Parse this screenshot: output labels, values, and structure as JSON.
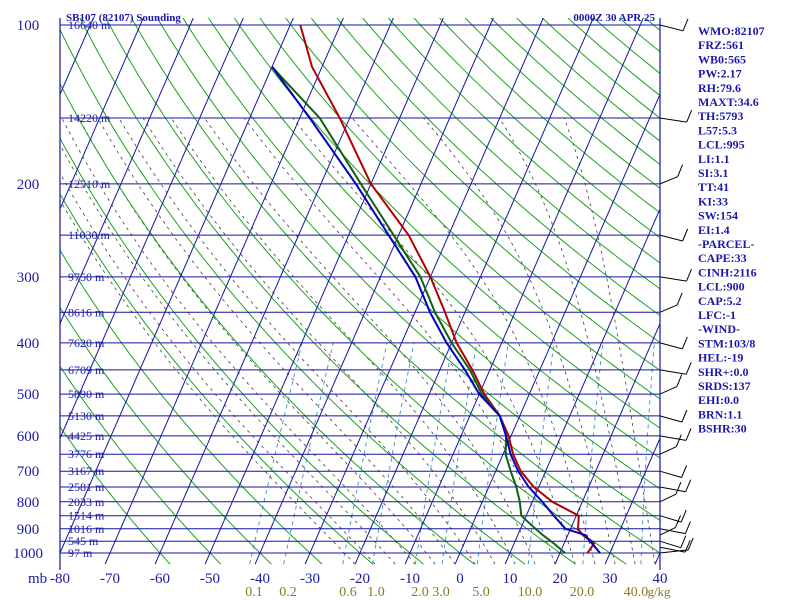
{
  "colors": {
    "background": "#ffffff",
    "isobar": "#1515a0",
    "isotherm": "#1515a0",
    "dry_adiabat": "#20a020",
    "moist_adiabat": "#404040",
    "mixing_ratio": "#3a8fd0",
    "temperature": "#b00000",
    "dewpoint": "#106010",
    "parcel": "#0000c0",
    "label_text": "#1a1aa8",
    "mixing_label_text": "#8a7a20"
  },
  "chart_data": {
    "type": "line",
    "title": "SB107 (82107) Sounding",
    "valid_time": "0000Z 30 APR 25",
    "x_axis": {
      "unit_label": "mb",
      "range_celsius": [
        -80,
        40
      ],
      "tick_labels": [
        "-80",
        "-70",
        "-60",
        "-50",
        "-40",
        "-30",
        "-20",
        "-10",
        "0",
        "10",
        "20",
        "30",
        "40"
      ],
      "tick_values": [
        -80,
        -70,
        -60,
        -50,
        -40,
        -30,
        -20,
        -10,
        0,
        10,
        20,
        30,
        40
      ]
    },
    "y_axis": {
      "scale": "log",
      "range_mb": [
        1000,
        100
      ],
      "tick_labels": [
        "100",
        "200",
        "300",
        "400",
        "500",
        "600",
        "700",
        "800",
        "900",
        "1000"
      ],
      "tick_values": [
        100,
        200,
        300,
        400,
        500,
        600,
        700,
        800,
        900,
        1000
      ]
    },
    "height_labels": [
      {
        "p": 100,
        "text": "16640 m"
      },
      {
        "p": 150,
        "text": "14220 m"
      },
      {
        "p": 200,
        "text": "12510 m"
      },
      {
        "p": 250,
        "text": "11030 m"
      },
      {
        "p": 300,
        "text": "9750 m"
      },
      {
        "p": 350,
        "text": "8616 m"
      },
      {
        "p": 400,
        "text": "7620 m"
      },
      {
        "p": 450,
        "text": "6709 m"
      },
      {
        "p": 500,
        "text": "5890 m"
      },
      {
        "p": 550,
        "text": "5130 m"
      },
      {
        "p": 600,
        "text": "4425 m"
      },
      {
        "p": 650,
        "text": "3776 m"
      },
      {
        "p": 700,
        "text": "3167 m"
      },
      {
        "p": 750,
        "text": "2581 m"
      },
      {
        "p": 800,
        "text": "2033 m"
      },
      {
        "p": 850,
        "text": "1514 m"
      },
      {
        "p": 900,
        "text": "1016 m"
      },
      {
        "p": 950,
        "text": "545 m"
      },
      {
        "p": 1000,
        "text": "97 m"
      }
    ],
    "mixing_ratio_labels": [
      "0.1",
      "0.2",
      "0.6",
      "1.0",
      "2.0",
      "3.0",
      "5.0",
      "10.0",
      "20.0",
      "40.0"
    ],
    "mixing_ratio_unit": "g/kg",
    "series": [
      {
        "key": "temperature",
        "points": [
          [
            1000,
            25.5
          ],
          [
            960,
            26
          ],
          [
            925,
            23
          ],
          [
            900,
            21.5
          ],
          [
            850,
            20.5
          ],
          [
            800,
            14
          ],
          [
            750,
            9
          ],
          [
            700,
            5
          ],
          [
            650,
            2
          ],
          [
            600,
            -0.5
          ],
          [
            550,
            -4
          ],
          [
            500,
            -9
          ],
          [
            450,
            -13.5
          ],
          [
            400,
            -19
          ],
          [
            350,
            -24
          ],
          [
            300,
            -30
          ],
          [
            250,
            -38
          ],
          [
            200,
            -50
          ],
          [
            150,
            -62
          ],
          [
            120,
            -72
          ],
          [
            100,
            -78
          ]
        ]
      },
      {
        "key": "dewpoint",
        "points": [
          [
            1000,
            21
          ],
          [
            960,
            18
          ],
          [
            925,
            15
          ],
          [
            900,
            13
          ],
          [
            850,
            9
          ],
          [
            800,
            7.5
          ],
          [
            750,
            5.5
          ],
          [
            700,
            3
          ],
          [
            650,
            0.5
          ],
          [
            600,
            -1
          ],
          [
            550,
            -4
          ],
          [
            500,
            -9.5
          ],
          [
            450,
            -14
          ],
          [
            400,
            -20
          ],
          [
            350,
            -26
          ],
          [
            300,
            -32
          ],
          [
            250,
            -41
          ],
          [
            200,
            -52
          ],
          [
            150,
            -66
          ],
          [
            130,
            -75
          ],
          [
            120,
            -80
          ]
        ]
      },
      {
        "key": "parcel",
        "points": [
          [
            1000,
            28
          ],
          [
            950,
            25
          ],
          [
            925,
            23.5
          ],
          [
            900,
            19
          ],
          [
            850,
            15.5
          ],
          [
            800,
            12
          ],
          [
            750,
            8
          ],
          [
            700,
            4.5
          ],
          [
            650,
            1.5
          ],
          [
            600,
            -1
          ],
          [
            550,
            -4
          ],
          [
            500,
            -10
          ],
          [
            450,
            -15
          ],
          [
            400,
            -21
          ],
          [
            350,
            -27
          ],
          [
            300,
            -33
          ],
          [
            250,
            -42
          ],
          [
            200,
            -53
          ],
          [
            150,
            -68
          ],
          [
            120,
            -80
          ]
        ]
      }
    ],
    "wind_barbs_mb": [
      1000,
      975,
      950,
      925,
      900,
      850,
      800,
      750,
      700,
      650,
      600,
      550,
      500,
      450,
      400,
      350,
      300,
      250,
      200,
      150,
      100
    ]
  },
  "indices": [
    "WMO:82107",
    "FRZ:561",
    "WB0:565",
    "PW:2.17",
    "RH:79.6",
    "MAXT:34.6",
    "TH:5793",
    "L57:5.3",
    "LCL:995",
    "LI:1.1",
    "SI:3.1",
    "TT:41",
    "KI:33",
    "SW:154",
    "EI:1.4",
    "-PARCEL-",
    "CAPE:33",
    "CINH:2116",
    "LCL:900",
    "CAP:5.2",
    "LFC:-1",
    "-WIND-",
    "STM:103/8",
    "HEL:-19",
    "SHR+:0.0",
    "SRDS:137",
    "EHI:0.0",
    "BRN:1.1",
    "BSHR:30"
  ]
}
